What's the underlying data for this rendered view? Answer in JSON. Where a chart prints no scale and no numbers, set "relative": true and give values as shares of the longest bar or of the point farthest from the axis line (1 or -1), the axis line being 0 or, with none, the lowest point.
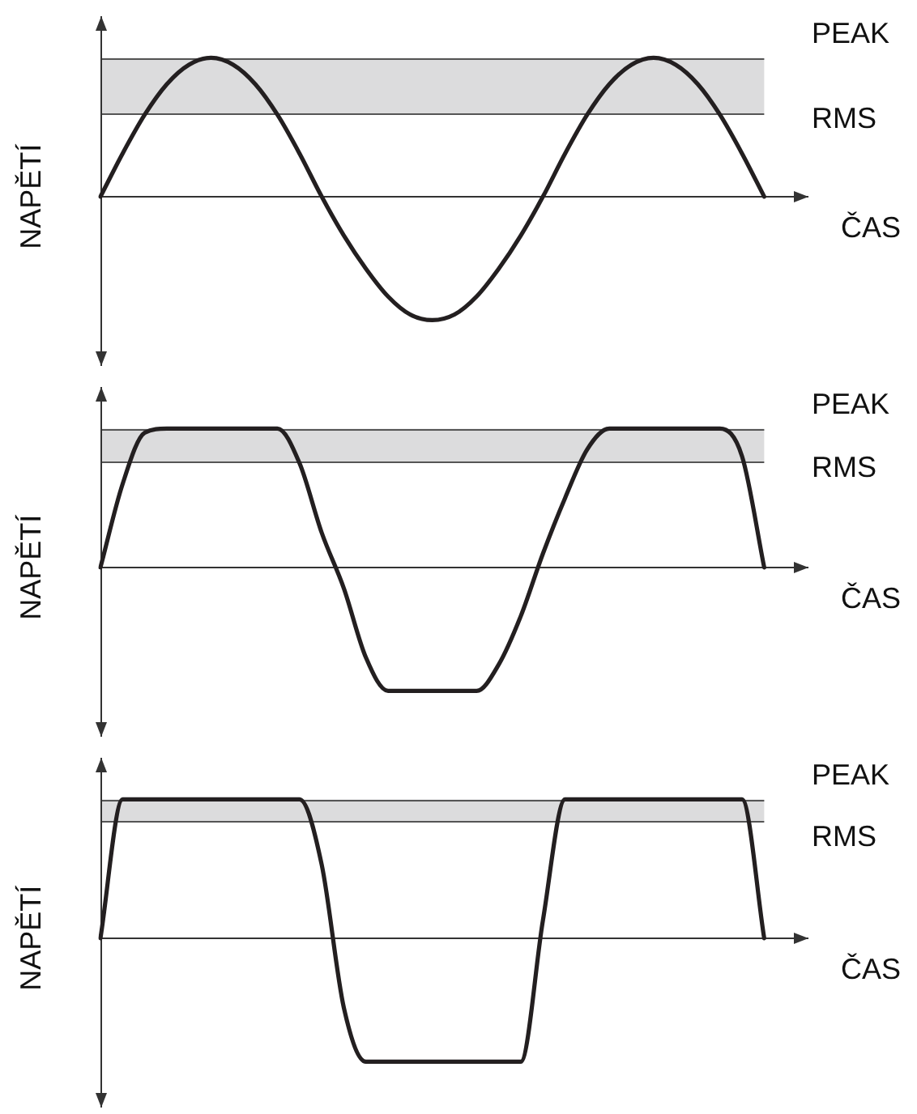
{
  "chart_data": [
    {
      "type": "line",
      "ylabel": "NAPĚTÍ",
      "xlabel": "ČAS",
      "relative": true,
      "marker": "none",
      "color": "#231f20",
      "categories": [
        null,
        null,
        null,
        null,
        null,
        null,
        null,
        null,
        null,
        null,
        null,
        null,
        null,
        null,
        null,
        null,
        null,
        null,
        null,
        null,
        null,
        null,
        null,
        null,
        null,
        null,
        null,
        null,
        null,
        null,
        null,
        null,
        null
      ],
      "values": [
        0,
        0.31,
        0.59,
        0.81,
        0.95,
        1,
        0.95,
        0.81,
        0.59,
        0.31,
        0,
        -0.28,
        -0.52,
        -0.72,
        -0.85,
        -0.89,
        -0.85,
        -0.72,
        -0.52,
        -0.28,
        0,
        0.31,
        0.59,
        0.81,
        0.95,
        1,
        0.95,
        0.81,
        0.59,
        0.31,
        0,
        null,
        null
      ],
      "bands": [
        {
          "axis": "y",
          "from": 0.6,
          "to": 1,
          "color": "#dcdcdd"
        }
      ],
      "ref_lines": [
        {
          "axis": "y",
          "value": 1,
          "label": "PEAK"
        },
        {
          "axis": "y",
          "value": 0.6,
          "label": "RMS"
        }
      ]
    },
    {
      "type": "line",
      "ylabel": "NAPĚTÍ",
      "xlabel": "ČAS",
      "relative": true,
      "marker": "none",
      "color": "#231f20",
      "categories": [
        null,
        null,
        null,
        null,
        null,
        null,
        null,
        null,
        null,
        null,
        null,
        null,
        null,
        null,
        null,
        null,
        null,
        null,
        null,
        null,
        null,
        null,
        null,
        null,
        null,
        null,
        null,
        null,
        null,
        null,
        null,
        null,
        null
      ],
      "values": [
        0,
        0.6,
        0.97,
        1,
        1,
        1,
        1,
        1,
        1,
        0.75,
        0.25,
        -0.15,
        -0.65,
        -0.89,
        -0.89,
        -0.89,
        -0.89,
        -0.89,
        -0.7,
        -0.35,
        0.1,
        0.5,
        0.85,
        1,
        1,
        1,
        1,
        1,
        1,
        0.8,
        0,
        null,
        null
      ],
      "bands": [
        {
          "axis": "y",
          "from": 0.76,
          "to": 1,
          "color": "#dcdcdd"
        }
      ],
      "ref_lines": [
        {
          "axis": "y",
          "value": 1,
          "label": "PEAK"
        },
        {
          "axis": "y",
          "value": 0.76,
          "label": "RMS"
        }
      ]
    },
    {
      "type": "line",
      "ylabel": "NAPĚTÍ",
      "xlabel": "ČAS",
      "relative": true,
      "marker": "none",
      "color": "#231f20",
      "categories": [
        null,
        null,
        null,
        null,
        null,
        null,
        null,
        null,
        null,
        null,
        null,
        null,
        null,
        null,
        null,
        null,
        null,
        null,
        null,
        null,
        null,
        null,
        null,
        null,
        null,
        null,
        null,
        null,
        null,
        null,
        null,
        null,
        null
      ],
      "values": [
        0,
        1,
        1,
        1,
        1,
        1,
        1,
        1,
        1,
        1,
        0.53,
        -0.5,
        -0.89,
        -0.89,
        -0.89,
        -0.89,
        -0.89,
        -0.89,
        -0.89,
        -0.89,
        0.13,
        1,
        1,
        1,
        1,
        1,
        1,
        1,
        1,
        1,
        0,
        null,
        null
      ],
      "bands": [
        {
          "axis": "y",
          "from": 0.84,
          "to": 1,
          "color": "#dcdcdd"
        }
      ],
      "ref_lines": [
        {
          "axis": "y",
          "value": 1,
          "label": "PEAK"
        },
        {
          "axis": "y",
          "value": 0.84,
          "label": "RMS"
        }
      ]
    }
  ]
}
